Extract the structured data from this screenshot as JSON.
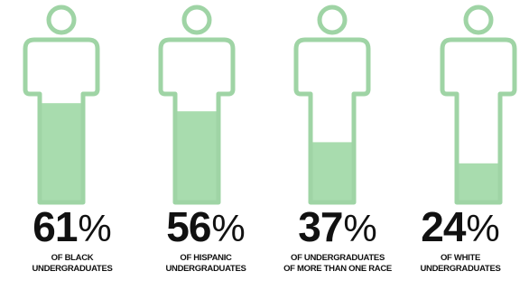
{
  "chart_data": {
    "type": "bar",
    "style": "pictograph-fill",
    "fill_color": "#a8dcae",
    "outline_color": "#9fd4a5",
    "categories": [
      "BLACK UNDERGRADUATES",
      "HISPANIC UNDERGRADUATES",
      "UNDERGRADUATES OF MORE THAN ONE RACE",
      "WHITE UNDERGRADUATES"
    ],
    "values": [
      61,
      56,
      37,
      24
    ],
    "ylim": [
      0,
      100
    ],
    "items": [
      {
        "value": 61,
        "number": "61",
        "percent_sign": "%",
        "line1": "OF BLACK",
        "line2": "UNDERGRADUATES"
      },
      {
        "value": 56,
        "number": "56",
        "percent_sign": "%",
        "line1": "OF HISPANIC",
        "line2": "UNDERGRADUATES"
      },
      {
        "value": 37,
        "number": "37",
        "percent_sign": "%",
        "line1": "OF UNDERGRADUATES",
        "line2": "OF MORE THAN ONE RACE"
      },
      {
        "value": 24,
        "number": "24",
        "percent_sign": "%",
        "line1": "OF WHITE",
        "line2": "UNDERGRADUATES"
      }
    ]
  }
}
